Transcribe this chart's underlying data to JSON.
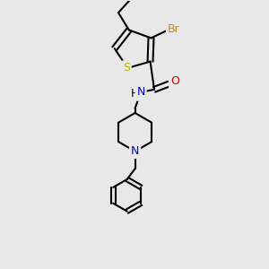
{
  "bg_color": "#e8e8e8",
  "atom_colors": {
    "S": "#b8b800",
    "Br": "#cc8800",
    "N": "#0000cc",
    "O": "#cc0000",
    "C": "#000000",
    "H": "#000000"
  },
  "bond_color": "#000000",
  "figsize": [
    3.0,
    3.0
  ],
  "dpi": 100,
  "xlim": [
    0,
    10
  ],
  "ylim": [
    0,
    10
  ]
}
